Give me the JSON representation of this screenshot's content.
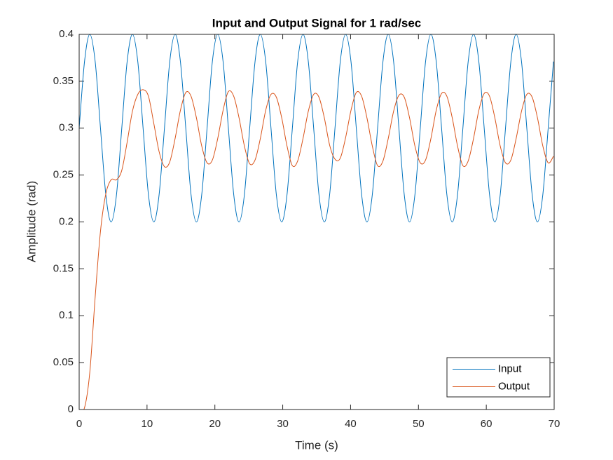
{
  "chart_data": {
    "type": "line",
    "title": "Input and Output Signal for 1 rad/sec",
    "x_label": "Time (s)",
    "y_label": "Amplitude (rad)",
    "x": [
      0,
      0.79,
      1.57,
      2.36,
      3.14,
      3.93,
      4.71,
      5.5,
      6.28,
      7.07,
      7.85,
      8.64,
      9.42,
      10.21,
      11.0,
      11.78,
      12.57,
      13.35,
      14.14,
      14.92,
      15.71,
      16.49,
      17.28,
      18.06,
      18.85,
      19.63,
      20.42,
      21.21,
      21.99,
      22.78,
      23.56,
      24.35,
      25.13,
      25.92,
      26.7,
      27.49,
      28.27,
      29.06,
      29.85,
      30.63,
      31.42,
      32.2,
      32.99,
      33.77,
      34.56,
      35.34,
      36.13,
      36.91,
      37.7,
      38.48,
      39.27,
      40.06,
      40.84,
      41.63,
      42.41,
      43.2,
      43.98,
      44.77,
      45.55,
      46.34,
      47.12,
      47.91,
      48.69,
      49.48,
      50.27,
      51.05,
      51.84,
      52.62,
      53.41,
      54.19,
      54.98,
      55.76,
      56.55,
      57.33,
      58.12,
      58.9,
      59.69,
      60.48,
      61.26,
      62.05,
      62.83,
      63.62,
      64.4,
      65.19,
      65.97,
      66.76,
      67.54,
      68.33,
      69.12,
      69.9
    ],
    "series": [
      {
        "name": "Input",
        "color": "#0072BD",
        "values": [
          0.3,
          0.371,
          0.4,
          0.371,
          0.3,
          0.229,
          0.2,
          0.229,
          0.3,
          0.371,
          0.4,
          0.371,
          0.3,
          0.229,
          0.2,
          0.229,
          0.3,
          0.371,
          0.4,
          0.371,
          0.3,
          0.229,
          0.2,
          0.229,
          0.3,
          0.371,
          0.4,
          0.371,
          0.3,
          0.229,
          0.2,
          0.229,
          0.3,
          0.371,
          0.4,
          0.371,
          0.3,
          0.229,
          0.2,
          0.229,
          0.3,
          0.371,
          0.4,
          0.371,
          0.3,
          0.229,
          0.2,
          0.229,
          0.3,
          0.371,
          0.4,
          0.371,
          0.3,
          0.229,
          0.2,
          0.229,
          0.3,
          0.371,
          0.4,
          0.371,
          0.3,
          0.229,
          0.2,
          0.229,
          0.3,
          0.371,
          0.4,
          0.371,
          0.3,
          0.229,
          0.2,
          0.229,
          0.3,
          0.371,
          0.4,
          0.371,
          0.3,
          0.229,
          0.2,
          0.229,
          0.3,
          0.371,
          0.4,
          0.371,
          0.3,
          0.229,
          0.2,
          0.229,
          0.3,
          0.371
        ]
      },
      {
        "name": "Output",
        "color": "#D95319",
        "values": [
          0,
          0.002,
          0.04,
          0.12,
          0.19,
          0.23,
          0.245,
          0.245,
          0.255,
          0.285,
          0.318,
          0.336,
          0.341,
          0.334,
          0.305,
          0.275,
          0.259,
          0.264,
          0.289,
          0.319,
          0.338,
          0.334,
          0.311,
          0.281,
          0.263,
          0.266,
          0.289,
          0.319,
          0.339,
          0.334,
          0.311,
          0.281,
          0.262,
          0.266,
          0.289,
          0.319,
          0.336,
          0.333,
          0.311,
          0.281,
          0.26,
          0.265,
          0.289,
          0.318,
          0.336,
          0.333,
          0.311,
          0.282,
          0.267,
          0.268,
          0.29,
          0.319,
          0.338,
          0.334,
          0.311,
          0.281,
          0.26,
          0.265,
          0.289,
          0.318,
          0.335,
          0.333,
          0.311,
          0.281,
          0.263,
          0.266,
          0.289,
          0.319,
          0.337,
          0.334,
          0.311,
          0.281,
          0.26,
          0.265,
          0.289,
          0.319,
          0.337,
          0.334,
          0.311,
          0.281,
          0.263,
          0.266,
          0.289,
          0.318,
          0.336,
          0.333,
          0.311,
          0.281,
          0.263,
          0.27
        ]
      }
    ],
    "xlim": [
      0,
      70
    ],
    "xticks": [
      0,
      10,
      20,
      30,
      40,
      50,
      60,
      70
    ],
    "ylim": [
      0,
      0.4
    ],
    "yticks": [
      0,
      0.05,
      0.1,
      0.15,
      0.2,
      0.25,
      0.3,
      0.35,
      0.4
    ],
    "grid": false,
    "legend_position": "lower right"
  }
}
